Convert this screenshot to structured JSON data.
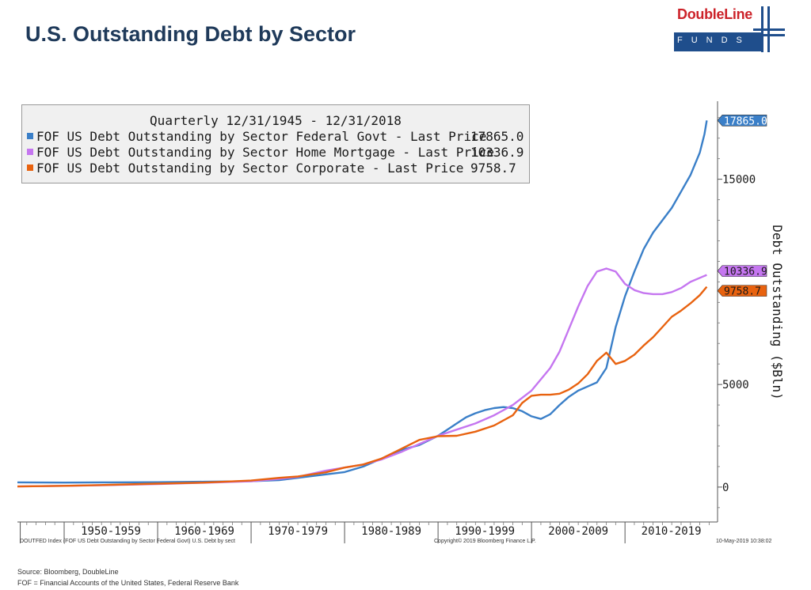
{
  "header": {
    "title": "U.S. Outstanding Debt by Sector",
    "logo_name": "DoubleLine",
    "logo_sub": "FUNDS"
  },
  "legend": {
    "title": "Quarterly 12/31/1945 - 12/31/2018",
    "entries": [
      {
        "label": "FOF US Debt Outstanding by Sector Federal Govt - Last Price",
        "value": "17865.0",
        "color": "#3a7fc8"
      },
      {
        "label": "FOF US Debt Outstanding by Sector Home Mortgage - Last Price",
        "value": "10336.9",
        "color": "#c576f0"
      },
      {
        "label": "FOF US Debt Outstanding by Sector Corporate - Last Price",
        "value": "9758.7",
        "color": "#e8620f"
      }
    ]
  },
  "footer": {
    "left_note": "DOUTFED Index (FOF US Debt Outstanding by Sector Federal Govt) U.S. Debt by sect",
    "copyright": "Copyright© 2019 Bloomberg Finance L.P.",
    "timestamp": "10-May-2019 10:38:02",
    "source": "Source: Bloomberg, DoubleLine",
    "fof_note": "FOF = Financial Accounts of the United States, Federal Reserve Bank"
  },
  "chart_data": {
    "type": "line",
    "ylabel": "Debt Outstanding ($Bln)",
    "ylim": [
      -1700,
      18800
    ],
    "xlim": [
      1945,
      2019.9
    ],
    "yticks": [
      0,
      5000,
      15000
    ],
    "x_categories": [
      "1950-1959",
      "1960-1969",
      "1970-1979",
      "1980-1989",
      "1990-1999",
      "2000-2009",
      "2010-2019"
    ],
    "series": [
      {
        "name": "FOF US Debt Outstanding by Sector Federal Govt",
        "color": "#3a7fc8",
        "last_label": "17865.0",
        "points": [
          [
            1945,
            230
          ],
          [
            1950,
            220
          ],
          [
            1955,
            230
          ],
          [
            1960,
            240
          ],
          [
            1965,
            260
          ],
          [
            1970,
            290
          ],
          [
            1973,
            340
          ],
          [
            1975,
            450
          ],
          [
            1978,
            620
          ],
          [
            1980,
            730
          ],
          [
            1982,
            1000
          ],
          [
            1984,
            1400
          ],
          [
            1986,
            1800
          ],
          [
            1988,
            2050
          ],
          [
            1990,
            2500
          ],
          [
            1991,
            2800
          ],
          [
            1992,
            3100
          ],
          [
            1993,
            3400
          ],
          [
            1994,
            3600
          ],
          [
            1995,
            3750
          ],
          [
            1996,
            3850
          ],
          [
            1997,
            3900
          ],
          [
            1998,
            3850
          ],
          [
            1999,
            3700
          ],
          [
            2000,
            3450
          ],
          [
            2001,
            3320
          ],
          [
            2002,
            3550
          ],
          [
            2003,
            4000
          ],
          [
            2004,
            4400
          ],
          [
            2005,
            4700
          ],
          [
            2006,
            4900
          ],
          [
            2007,
            5100
          ],
          [
            2008,
            5800
          ],
          [
            2009,
            7800
          ],
          [
            2010,
            9300
          ],
          [
            2011,
            10500
          ],
          [
            2012,
            11600
          ],
          [
            2013,
            12400
          ],
          [
            2014,
            13000
          ],
          [
            2015,
            13600
          ],
          [
            2016,
            14400
          ],
          [
            2017,
            15200
          ],
          [
            2018,
            16300
          ],
          [
            2018.5,
            17200
          ],
          [
            2018.75,
            17865
          ]
        ]
      },
      {
        "name": "FOF US Debt Outstanding by Sector Home Mortgage",
        "color": "#c576f0",
        "last_label": "10336.9",
        "points": [
          [
            1945,
            30
          ],
          [
            1950,
            60
          ],
          [
            1955,
            100
          ],
          [
            1960,
            150
          ],
          [
            1965,
            210
          ],
          [
            1970,
            280
          ],
          [
            1973,
            400
          ],
          [
            1975,
            500
          ],
          [
            1978,
            800
          ],
          [
            1980,
            950
          ],
          [
            1982,
            1100
          ],
          [
            1984,
            1350
          ],
          [
            1986,
            1700
          ],
          [
            1988,
            2100
          ],
          [
            1990,
            2500
          ],
          [
            1992,
            2800
          ],
          [
            1994,
            3100
          ],
          [
            1996,
            3500
          ],
          [
            1998,
            4000
          ],
          [
            2000,
            4700
          ],
          [
            2002,
            5800
          ],
          [
            2003,
            6600
          ],
          [
            2004,
            7700
          ],
          [
            2005,
            8800
          ],
          [
            2006,
            9800
          ],
          [
            2007,
            10500
          ],
          [
            2008,
            10650
          ],
          [
            2009,
            10500
          ],
          [
            2010,
            9900
          ],
          [
            2011,
            9600
          ],
          [
            2012,
            9450
          ],
          [
            2013,
            9400
          ],
          [
            2014,
            9400
          ],
          [
            2015,
            9500
          ],
          [
            2016,
            9700
          ],
          [
            2017,
            10000
          ],
          [
            2018.75,
            10336.9
          ]
        ]
      },
      {
        "name": "FOF US Debt Outstanding by Sector Corporate",
        "color": "#e8620f",
        "last_label": "9758.7",
        "points": [
          [
            1945,
            30
          ],
          [
            1950,
            60
          ],
          [
            1955,
            110
          ],
          [
            1960,
            170
          ],
          [
            1965,
            220
          ],
          [
            1970,
            320
          ],
          [
            1973,
            450
          ],
          [
            1975,
            520
          ],
          [
            1978,
            720
          ],
          [
            1980,
            950
          ],
          [
            1982,
            1100
          ],
          [
            1984,
            1400
          ],
          [
            1986,
            1850
          ],
          [
            1988,
            2300
          ],
          [
            1990,
            2480
          ],
          [
            1992,
            2500
          ],
          [
            1994,
            2700
          ],
          [
            1996,
            3000
          ],
          [
            1998,
            3500
          ],
          [
            1999,
            4100
          ],
          [
            2000,
            4450
          ],
          [
            2001,
            4500
          ],
          [
            2002,
            4500
          ],
          [
            2003,
            4550
          ],
          [
            2004,
            4750
          ],
          [
            2005,
            5050
          ],
          [
            2006,
            5500
          ],
          [
            2007,
            6150
          ],
          [
            2008,
            6550
          ],
          [
            2009,
            6000
          ],
          [
            2010,
            6150
          ],
          [
            2011,
            6450
          ],
          [
            2012,
            6900
          ],
          [
            2013,
            7300
          ],
          [
            2014,
            7800
          ],
          [
            2015,
            8300
          ],
          [
            2016,
            8600
          ],
          [
            2017,
            8950
          ],
          [
            2018,
            9350
          ],
          [
            2018.75,
            9758.7
          ]
        ]
      }
    ]
  }
}
